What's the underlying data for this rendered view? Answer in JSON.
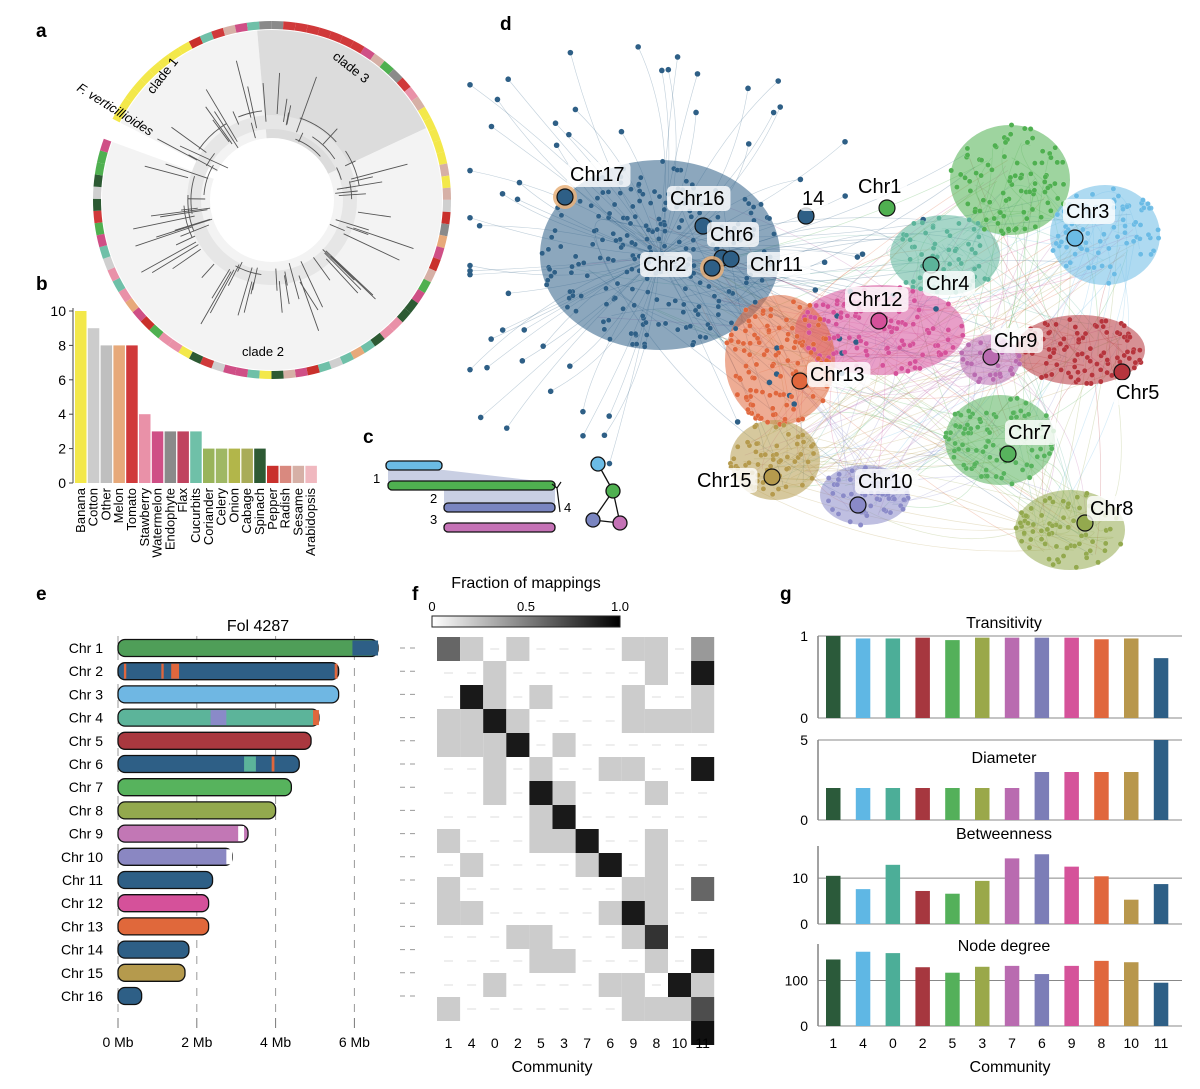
{
  "panels": {
    "a": {
      "letter": "a",
      "outgroup": "F. verticillioides",
      "clades": [
        "clade 1",
        "clade 2",
        "clade 3"
      ]
    },
    "b": {
      "letter": "b",
      "chart_data": {
        "type": "bar",
        "categories": [
          "Banana",
          "Cotton",
          "Other",
          "Melon",
          "Tomato",
          "Stawberry",
          "Watermelon",
          "Endophyte",
          "Flax",
          "Cucurbits",
          "Coriander",
          "Celery",
          "Onion",
          "Cabage",
          "Spinach",
          "Pepper",
          "Radish",
          "Sesame",
          "Arabidopsis"
        ],
        "values": [
          10,
          9,
          8,
          8,
          8,
          4,
          3,
          3,
          3,
          3,
          2,
          2,
          2,
          2,
          2,
          1,
          1,
          1,
          1
        ],
        "colors": [
          "#f3e84a",
          "#cccccc",
          "#bfbfbf",
          "#e7a97a",
          "#d0393a",
          "#e991a8",
          "#cf4f86",
          "#8a8a8a",
          "#c0435f",
          "#6fc0a8",
          "#99b45a",
          "#9fb864",
          "#b2b64a",
          "#a9ac58",
          "#2d5a33",
          "#c9302c",
          "#d9897f",
          "#d6b0a6",
          "#f0b8bf"
        ],
        "yticks": [
          0,
          2,
          4,
          6,
          8,
          10
        ],
        "ylim": [
          0,
          10
        ]
      }
    },
    "c": {
      "letter": "c",
      "labels": [
        "1",
        "2",
        "3",
        "4"
      ]
    },
    "d": {
      "letter": "d",
      "nodes": [
        "Chr17",
        "Chr16",
        "14",
        "Chr1",
        "Chr3",
        "Chr6",
        "Chr2",
        "Chr11",
        "Chr4",
        "Chr12",
        "Chr9",
        "Chr5",
        "Chr13",
        "Chr7",
        "Chr15",
        "Chr10",
        "Chr8"
      ]
    },
    "e": {
      "letter": "e",
      "title": "Fol 4287",
      "chart_data": {
        "type": "bar",
        "orientation": "horizontal",
        "categories": [
          "Chr 1",
          "Chr 2",
          "Chr 3",
          "Chr 4",
          "Chr 5",
          "Chr 6",
          "Chr 7",
          "Chr 8",
          "Chr 9",
          "Chr 10",
          "Chr 11",
          "Chr 12",
          "Chr 13",
          "Chr 14",
          "Chr 15",
          "Chr 16"
        ],
        "values": [
          6.6,
          5.6,
          5.6,
          5.1,
          4.9,
          4.6,
          4.4,
          4.0,
          3.3,
          2.9,
          2.4,
          2.3,
          2.3,
          1.8,
          1.7,
          0.6
        ],
        "colors": [
          "#4f9e58",
          "#2e5f86",
          "#6fb7e3",
          "#5cb49a",
          "#a9383f",
          "#2e5f86",
          "#57b35d",
          "#93a94e",
          "#c277b5",
          "#8a87c2",
          "#2e5f86",
          "#d5519a",
          "#e0683b",
          "#2e5f86",
          "#b59a4d",
          "#2e5f86"
        ],
        "xticks": [
          "0 Mb",
          "2 Mb",
          "4 Mb",
          "6 Mb"
        ],
        "xlim": [
          0,
          7
        ]
      }
    },
    "f": {
      "letter": "f",
      "colorbar_title": "Fraction of mappings",
      "colorbar_ticks": [
        "0",
        "0.5",
        "1.0"
      ],
      "xlabel": "Community",
      "chart_data": {
        "type": "heatmap",
        "columns": [
          "1",
          "4",
          "0",
          "2",
          "5",
          "3",
          "7",
          "6",
          "9",
          "8",
          "10",
          "11"
        ],
        "rows": 16,
        "values": [
          [
            0.6,
            0.2,
            0,
            0.2,
            0,
            0,
            0,
            0,
            0.2,
            0.2,
            0,
            0.4
          ],
          [
            0,
            0,
            0.2,
            0,
            0,
            0,
            0,
            0,
            0,
            0.2,
            0,
            0.9
          ],
          [
            0,
            0.9,
            0.2,
            0,
            0.2,
            0,
            0,
            0,
            0.2,
            0,
            0,
            0.2
          ],
          [
            0.2,
            0.2,
            0.9,
            0.2,
            0,
            0,
            0,
            0,
            0.2,
            0.2,
            0.2,
            0.2
          ],
          [
            0.2,
            0.2,
            0.2,
            0.9,
            0,
            0.2,
            0,
            0,
            0,
            0,
            0,
            0
          ],
          [
            0,
            0,
            0.2,
            0,
            0.2,
            0,
            0,
            0.2,
            0.2,
            0,
            0,
            0.9
          ],
          [
            0,
            0,
            0.2,
            0,
            0.9,
            0.2,
            0,
            0,
            0,
            0.2,
            0,
            0
          ],
          [
            0,
            0,
            0,
            0,
            0.2,
            0.9,
            0,
            0,
            0,
            0,
            0,
            0
          ],
          [
            0.2,
            0,
            0,
            0,
            0.2,
            0.2,
            0.9,
            0,
            0,
            0.2,
            0,
            0
          ],
          [
            0,
            0.2,
            0,
            0,
            0,
            0,
            0.2,
            0.9,
            0,
            0.2,
            0,
            0
          ],
          [
            0.2,
            0,
            0,
            0,
            0,
            0,
            0,
            0,
            0.2,
            0.2,
            0,
            0.6
          ],
          [
            0.2,
            0.2,
            0,
            0,
            0,
            0,
            0,
            0.2,
            0.9,
            0.2,
            0,
            0
          ],
          [
            0,
            0,
            0,
            0.2,
            0.2,
            0,
            0,
            0,
            0.2,
            0.8,
            0,
            0
          ],
          [
            0,
            0,
            0,
            0,
            0.2,
            0.2,
            0,
            0,
            0,
            0.2,
            0,
            0.9
          ],
          [
            0,
            0,
            0.2,
            0,
            0,
            0,
            0,
            0.2,
            0.2,
            0,
            0.9,
            0.2
          ],
          [
            0.2,
            0,
            0,
            0,
            0,
            0,
            0,
            0,
            0.2,
            0.2,
            0.2,
            0.7
          ]
        ]
      }
    },
    "g": {
      "letter": "g",
      "xlabel": "Community",
      "communities": [
        "1",
        "4",
        "0",
        "2",
        "5",
        "3",
        "7",
        "6",
        "9",
        "8",
        "10",
        "11"
      ],
      "colors": [
        "#2b5a3a",
        "#5fb7e4",
        "#4cae98",
        "#a6373f",
        "#54b05a",
        "#9aa84a",
        "#b96bb0",
        "#7c7db7",
        "#d5539a",
        "#e0673d",
        "#b8974c",
        "#2e5f86"
      ],
      "chart_data": [
        {
          "type": "bar",
          "title": "Transitivity",
          "values": [
            1,
            0.97,
            0.97,
            0.98,
            0.95,
            0.98,
            0.98,
            0.98,
            0.98,
            0.96,
            0.97,
            0.73
          ],
          "yticks": [
            "0",
            "1"
          ],
          "ylim": [
            0,
            1
          ]
        },
        {
          "type": "bar",
          "title": "Diameter",
          "values": [
            2,
            2,
            2,
            2,
            2,
            2,
            2,
            3,
            3,
            3,
            3,
            5
          ],
          "yticks": [
            "0",
            "5"
          ],
          "ylim": [
            0,
            5
          ]
        },
        {
          "type": "bar",
          "title": "Betweenness",
          "values": [
            10.5,
            7.6,
            12.9,
            7.2,
            6.6,
            9.4,
            14.3,
            15.2,
            12.5,
            10.4,
            5.3,
            8.7
          ],
          "yticks": [
            "0",
            "10"
          ],
          "ylim": [
            0,
            17
          ]
        },
        {
          "type": "bar",
          "title": "Node degree",
          "values": [
            146,
            163,
            160,
            129,
            117,
            130,
            132,
            114,
            132,
            143,
            140,
            95
          ],
          "yticks": [
            "0",
            "100"
          ],
          "ylim": [
            0,
            180
          ]
        }
      ]
    }
  }
}
